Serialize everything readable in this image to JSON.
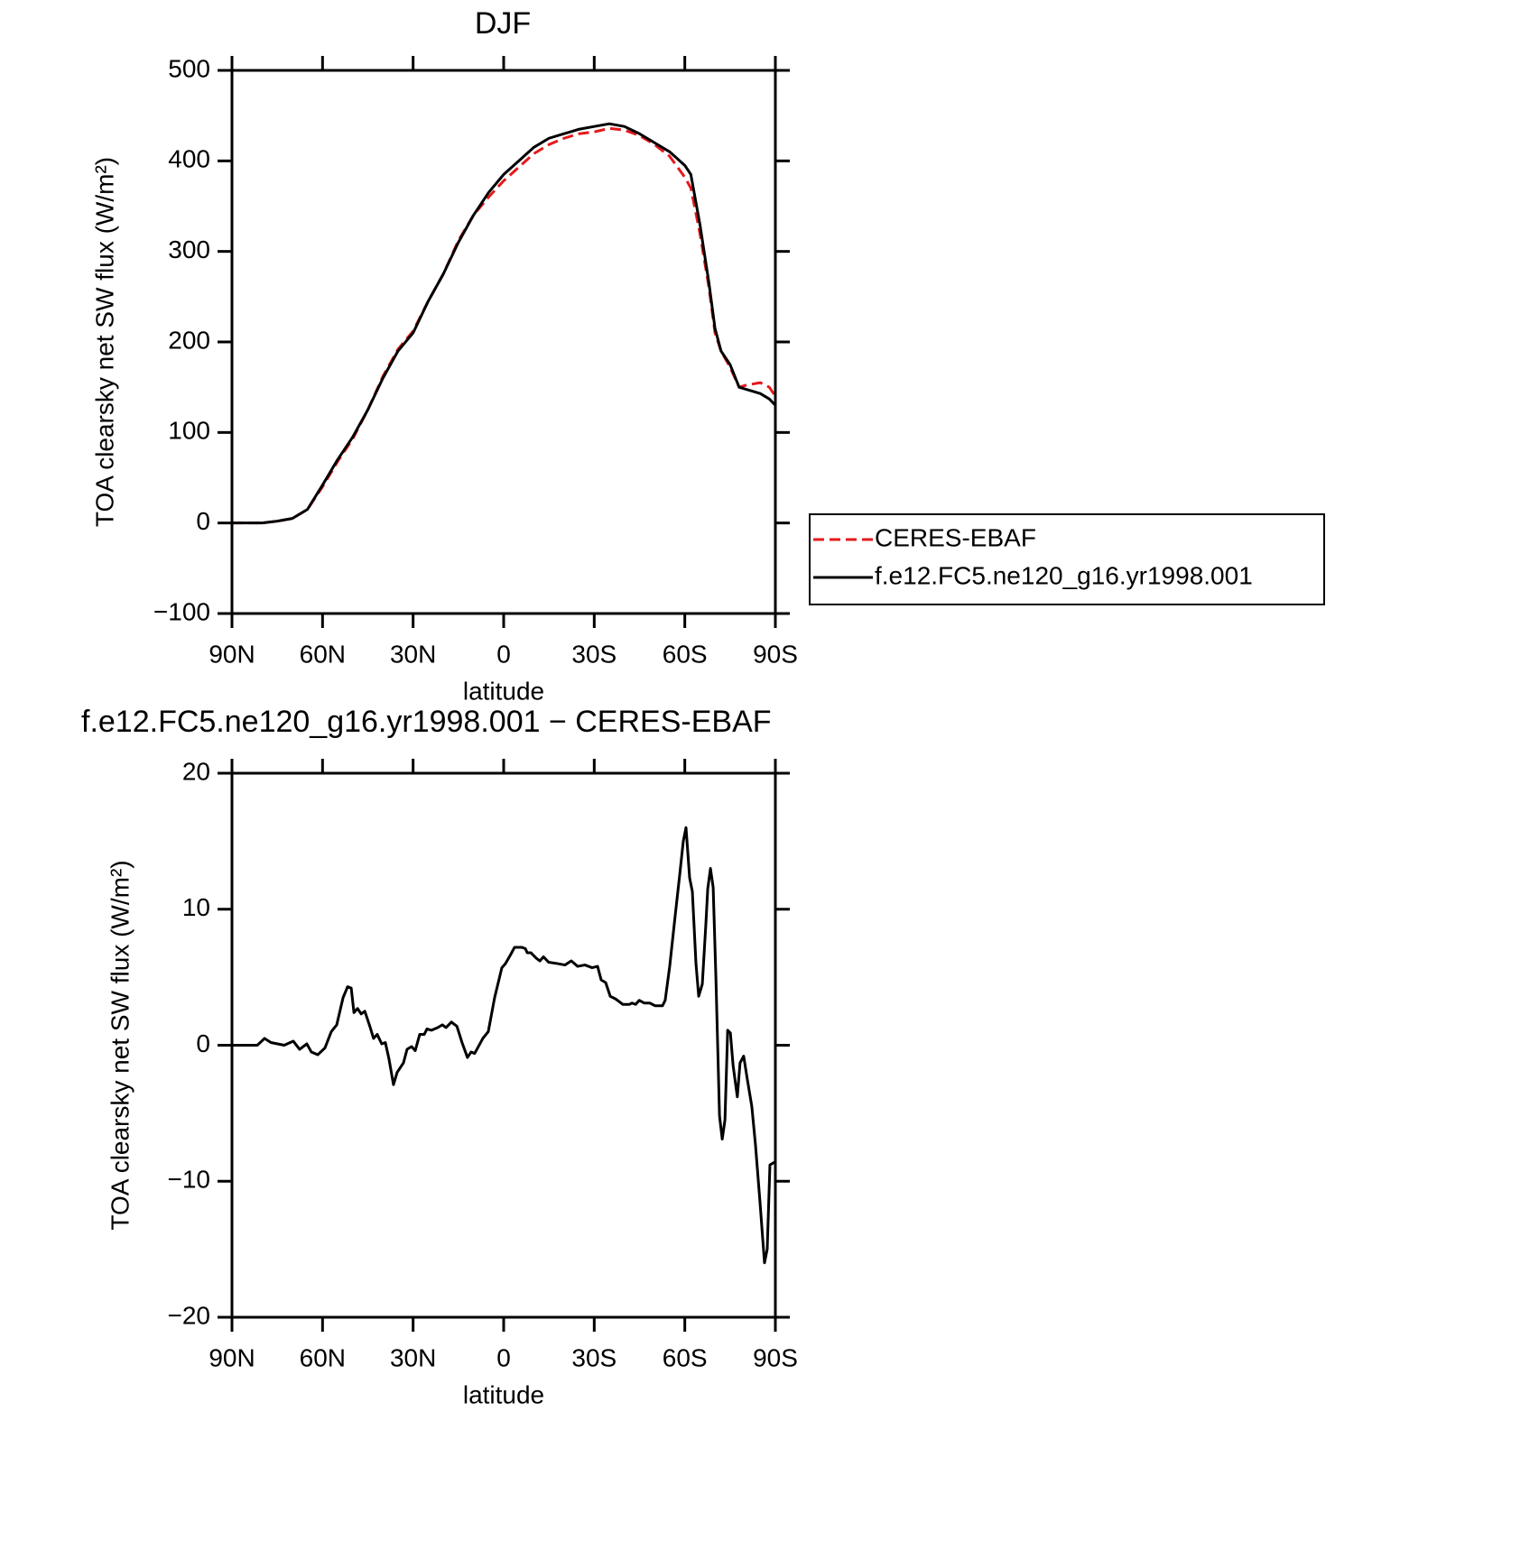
{
  "chart_data": [
    {
      "type": "line",
      "title": "DJF",
      "xlabel": "latitude",
      "ylabel": "TOA clearsky net SW flux (W/m²)",
      "xlim": [
        90,
        -90
      ],
      "xticks": [
        {
          "value": 90,
          "label": "90N"
        },
        {
          "value": 60,
          "label": "60N"
        },
        {
          "value": 30,
          "label": "30N"
        },
        0,
        {
          "value": -30,
          "label": "30S"
        },
        {
          "value": -60,
          "label": "60S"
        },
        {
          "value": -90,
          "label": "90S"
        }
      ],
      "ylim": [
        -100,
        500
      ],
      "yticks": [
        {
          "value": -100,
          "label": "−100"
        },
        0,
        100,
        200,
        300,
        400,
        500
      ],
      "legend": "right",
      "x": [
        90,
        85,
        80,
        75,
        70,
        65,
        60,
        55,
        50,
        45,
        40,
        35,
        30,
        25,
        20,
        15,
        10,
        5,
        0,
        -5,
        -10,
        -15,
        -20,
        -25,
        -30,
        -35,
        -40,
        -45,
        -50,
        -55,
        -60,
        -62,
        -65,
        -68,
        -70,
        -72,
        -75,
        -78,
        -80,
        -85,
        -88,
        -90
      ],
      "series": [
        {
          "name": "CERES-EBAF",
          "color": "#e41a1c",
          "dashed": true,
          "values": [
            0,
            0,
            0,
            2,
            5,
            15,
            40,
            68,
            93,
            125,
            162,
            192,
            212,
            245,
            275,
            312,
            340,
            360,
            378,
            393,
            408,
            418,
            425,
            430,
            432,
            436,
            434,
            428,
            418,
            405,
            382,
            370,
            320,
            260,
            210,
            190,
            172,
            150,
            152,
            155,
            150,
            140
          ]
        },
        {
          "name": "f.e12.FC5.ne120_g16.yr1998.001",
          "color": "#000000",
          "dashed": false,
          "values": [
            0,
            0,
            0,
            2,
            5,
            15,
            42,
            70,
            95,
            125,
            160,
            190,
            210,
            245,
            275,
            310,
            340,
            365,
            385,
            400,
            415,
            425,
            430,
            435,
            438,
            441,
            438,
            430,
            420,
            410,
            395,
            385,
            330,
            265,
            215,
            190,
            175,
            150,
            148,
            143,
            137,
            130
          ]
        }
      ]
    },
    {
      "type": "line",
      "title": "f.e12.FC5.ne120_g16.yr1998.001 − CERES-EBAF",
      "xlabel": "latitude",
      "ylabel": "TOA clearsky net SW flux (W/m²)",
      "xlim": [
        90,
        -90
      ],
      "xticks": [
        {
          "value": 90,
          "label": "90N"
        },
        {
          "value": 60,
          "label": "60N"
        },
        {
          "value": 30,
          "label": "30N"
        },
        0,
        {
          "value": -30,
          "label": "30S"
        },
        {
          "value": -60,
          "label": "60S"
        },
        {
          "value": -90,
          "label": "90S"
        }
      ],
      "ylim": [
        -20,
        20
      ],
      "yticks": [
        {
          "value": -20,
          "label": "−20"
        },
        {
          "value": -10,
          "label": "−10"
        },
        0,
        10,
        20
      ],
      "color": "#000000",
      "x": [
        90,
        81.6,
        79.2,
        77.1,
        72.7,
        69.7,
        67.6,
        65.2,
        63.7,
        61.6,
        59.2,
        57.1,
        55.3,
        53.2,
        51.7,
        50.5,
        49.6,
        48.4,
        47.2,
        46.0,
        44.2,
        43.1,
        41.9,
        40.4,
        39.2,
        38.0,
        36.5,
        35.3,
        33.2,
        32.0,
        30.5,
        29.3,
        27.8,
        26.3,
        25.4,
        23.9,
        21.8,
        20.3,
        19.1,
        17.3,
        15.5,
        13.8,
        12.0,
        10.8,
        9.6,
        6.9,
        5.1,
        3.0,
        0.6,
        -0.6,
        -2.4,
        -3.6,
        -6.0,
        -7.2,
        -7.8,
        -9.0,
        -10.8,
        -12.0,
        -13.2,
        -14.9,
        -17.9,
        -20.3,
        -22.4,
        -24.5,
        -26.9,
        -29.3,
        -31.1,
        -32.3,
        -33.8,
        -35.3,
        -37.1,
        -39.5,
        -41.6,
        -42.5,
        -43.7,
        -44.9,
        -46.6,
        -48.4,
        -50.2,
        -52.6,
        -53.5,
        -55.0,
        -56.8,
        -58.3,
        -59.5,
        -60.4,
        -61.6,
        -62.5,
        -63.7,
        -64.6,
        -65.8,
        -67.0,
        -67.6,
        -68.5,
        -69.4,
        -70.3,
        -71.5,
        -72.4,
        -73.3,
        -74.2,
        -75.1,
        -76.0,
        -77.4,
        -78.3,
        -79.5,
        -80.7,
        -82.2,
        -83.4,
        -84.9,
        -86.4,
        -87.3,
        -88.2,
        -89.7
      ],
      "values": [
        0,
        0,
        0.5,
        0.2,
        0,
        0.3,
        -0.3,
        0.1,
        -0.5,
        -0.7,
        -0.2,
        1,
        1.5,
        3.5,
        4.3,
        4.2,
        2.4,
        2.7,
        2.3,
        2.5,
        1.3,
        0.5,
        0.8,
        0.1,
        0.2,
        -1,
        -2.9,
        -2.0,
        -1.3,
        -0.3,
        -0.1,
        -0.4,
        0.8,
        0.8,
        1.2,
        1.1,
        1.3,
        1.5,
        1.3,
        1.7,
        1.4,
        0.2,
        -0.9,
        -0.5,
        -0.6,
        0.5,
        1,
        3.5,
        5.7,
        6,
        6.7,
        7.2,
        7.2,
        7.1,
        6.8,
        6.8,
        6.4,
        6.2,
        6.5,
        6.1,
        6.0,
        5.9,
        6.2,
        5.8,
        5.9,
        5.7,
        5.8,
        4.8,
        4.6,
        3.6,
        3.4,
        3.0,
        3.0,
        3.1,
        3.0,
        3.3,
        3.1,
        3.1,
        2.9,
        2.9,
        3.3,
        5.8,
        9.5,
        12.5,
        15,
        16,
        12.3,
        11.3,
        6,
        3.6,
        4.5,
        9,
        11.5,
        13,
        11.6,
        5,
        -5.2,
        -6.9,
        -5.5,
        1.1,
        0.9,
        -1.5,
        -3.8,
        -1.3,
        -0.8,
        -2.5,
        -4.5,
        -7.3,
        -11.5,
        -16,
        -15,
        -8.8,
        -8.6
      ]
    }
  ]
}
